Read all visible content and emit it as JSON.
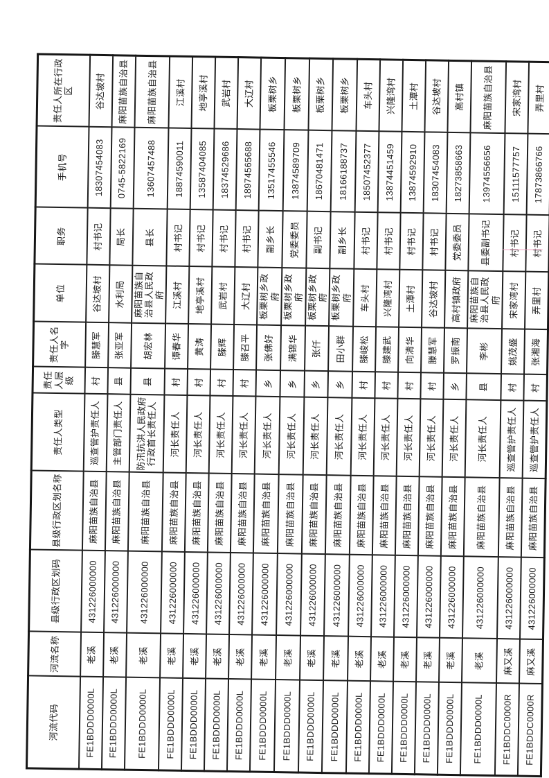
{
  "colors": {
    "paper": "#ffffff",
    "line": "#1f1f1f",
    "text": "#1e1e1e",
    "artifact_pink": "#f2a0c0"
  },
  "table": {
    "columns": [
      {
        "key": "river-code",
        "label": "河流代码"
      },
      {
        "key": "river-name",
        "label": "河流名称"
      },
      {
        "key": "county-code",
        "label": "县级行政区划码"
      },
      {
        "key": "county-name",
        "label": "县级行政区划名称"
      },
      {
        "key": "resp-type",
        "label": "责任人类型"
      },
      {
        "key": "resp-level",
        "label": "责任人层级"
      },
      {
        "key": "resp-name",
        "label": "责任人名字"
      },
      {
        "key": "unit",
        "label": "单位"
      },
      {
        "key": "position",
        "label": "职务"
      },
      {
        "key": "phone",
        "label": "手机号"
      },
      {
        "key": "resp-region",
        "label": "责任人所在行政区"
      }
    ],
    "rows": [
      [
        "FE1BDDD0000L",
        "老溪",
        "431226000000",
        "麻阳苗族自治县",
        "巡查管护责任人",
        "村",
        "滕慧军",
        "谷达坡村",
        "村书记",
        "18307454083",
        "谷达坡村"
      ],
      [
        "FE1BDDD0000L",
        "老溪",
        "431226000000",
        "麻阳苗族自治县",
        "主管部门责任人",
        "县",
        "张亚军",
        "水利局",
        "局长",
        "0745-5822169",
        "麻阳苗族自治县"
      ],
      [
        "FE1BDDD0000L",
        "老溪",
        "431226000000",
        "麻阳苗族自治县",
        "防汛抗洪人民政府行政首长责任人",
        "县",
        "胡宏林",
        "麻阳苗族自治县人民政府",
        "县长",
        "13607457488",
        "麻阳苗族自治县"
      ],
      [
        "FE1BDDD0000L",
        "老溪",
        "431226000000",
        "麻阳苗族自治县",
        "河长责任人",
        "村",
        "谭春华",
        "江溪村",
        "村书记",
        "18874590011",
        "江溪村"
      ],
      [
        "FE1BDDD0000L",
        "老溪",
        "431226000000",
        "麻阳苗族自治县",
        "河长责任人",
        "村",
        "黄涛",
        "地亭溪村",
        "村书记",
        "13587404085",
        "地亭溪村"
      ],
      [
        "FE1BDDD0000L",
        "老溪",
        "431226000000",
        "麻阳苗族自治县",
        "河长责任人",
        "村",
        "滕辉",
        "武岩村",
        "村书记",
        "18374529686",
        "武岩村"
      ],
      [
        "FE1BDDD0000L",
        "老溪",
        "431226000000",
        "麻阳苗族自治县",
        "河长责任人",
        "村",
        "滕召平",
        "大辽村",
        "村书记",
        "18974565688",
        "大辽村"
      ],
      [
        "FE1BDDD0000L",
        "老溪",
        "431226000000",
        "麻阳苗族自治县",
        "河长责任人",
        "乡",
        "张佛好",
        "板栗树乡政府",
        "副乡长",
        "13517455546",
        "板栗树乡"
      ],
      [
        "FE1BDDD0000L",
        "老溪",
        "431226000000",
        "麻阳苗族自治县",
        "河长责任人",
        "乡",
        "满锦华",
        "板栗树乡政府",
        "党委委员",
        "13874589709",
        "板栗树乡"
      ],
      [
        "FE1BDDD0000L",
        "老溪",
        "431226000000",
        "麻阳苗族自治县",
        "河长责任人",
        "乡",
        "张仟",
        "板栗树乡政府",
        "副书记",
        "18670481471",
        "板栗树乡"
      ],
      [
        "FE1BDDD0000L",
        "老溪",
        "431226000000",
        "麻阳苗族自治县",
        "河长责任人",
        "乡",
        "田小群",
        "板栗树乡政府",
        "副乡长",
        "18166188737",
        "板栗树乡"
      ],
      [
        "FE1BDDD0000L",
        "老溪",
        "431226000000",
        "麻阳苗族自治县",
        "河长责任人",
        "村",
        "滕峻松",
        "车头村",
        "村书记",
        "18507452377",
        "车头村"
      ],
      [
        "FE1BDDD0000L",
        "老溪",
        "431226000000",
        "麻阳苗族自治县",
        "河长责任人",
        "村",
        "滕建武",
        "兴隆湾村",
        "村书记",
        "13874451459",
        "兴隆湾村"
      ],
      [
        "FE1BDDD0000L",
        "老溪",
        "431226000000",
        "麻阳苗族自治县",
        "河长责任人",
        "村",
        "向清华",
        "土潭村",
        "村书记",
        "13874592910",
        "土潭村"
      ],
      [
        "FE1BDDD0000L",
        "老溪",
        "431226000000",
        "麻阳苗族自治县",
        "河长责任人",
        "村",
        "滕慧军",
        "谷达坡村",
        "村书记",
        "18307454083",
        "谷达坡村"
      ],
      [
        "FE1BDDD0000L",
        "老溪",
        "431226000000",
        "麻阳苗族自治县",
        "河长责任人",
        "乡",
        "罗振南",
        "高村镇政府",
        "党委委员",
        "18273858663",
        "高村镇"
      ],
      [
        "FE1BDDD0000L",
        "老溪",
        "431226000000",
        "麻阳苗族自治县",
        "河长责任人",
        "县",
        "李彬",
        "麻阳苗族自治县人民政府",
        "县委副书记",
        "13974556656",
        "麻阳苗族自治县"
      ],
      [
        "FE1BDDC0000R",
        "麻又溪",
        "431226000000",
        "麻阳苗族自治县",
        "巡查管护责任人",
        "村",
        "姚茂盛",
        "宋家湾村",
        "村书记",
        "15111577757",
        "宋家湾村"
      ],
      [
        "FE1BDDC0000R",
        "麻又溪",
        "431226000000",
        "麻阳苗族自治县",
        "巡查管护责任人",
        "村",
        "张湘海",
        "弄里村",
        "村书记",
        "17873866766",
        "弄里村"
      ]
    ]
  }
}
